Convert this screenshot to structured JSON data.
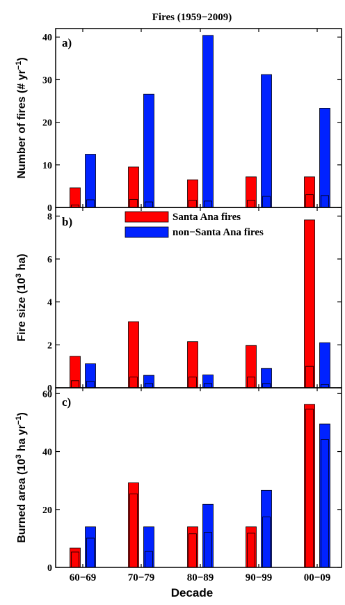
{
  "title": "Fires (1959−2009)",
  "xlabel": "Decade",
  "categories": [
    "60−69",
    "70−79",
    "80−89",
    "90−99",
    "00−09"
  ],
  "legend": {
    "placement": "top-center of panel b",
    "items": [
      "Santa Ana fires",
      "non−Santa Ana fires"
    ]
  },
  "colors": {
    "santa_ana": "#ff0000",
    "non_santa_ana": "#0022ff"
  },
  "chart_data": [
    {
      "type": "bar",
      "panel_label": "a)",
      "ylabel_main": "Number of fires (# yr",
      "ylabel_sup": "−1",
      "ylabel_end": ")",
      "ylim": [
        0,
        42
      ],
      "yticks": [
        0,
        10,
        20,
        30,
        40
      ],
      "categories": [
        "60−69",
        "70−79",
        "80−89",
        "90−99",
        "00−09"
      ],
      "series": [
        {
          "name": "Santa Ana fires",
          "values": [
            4.6,
            9.5,
            6.5,
            7.2,
            7.2
          ],
          "inner_values": [
            0.6,
            1.9,
            1.7,
            1.7,
            3.0
          ]
        },
        {
          "name": "non−Santa Ana fires",
          "values": [
            12.5,
            26.6,
            40.4,
            31.2,
            23.3
          ],
          "inner_values": [
            1.8,
            1.3,
            1.5,
            2.6,
            2.8
          ]
        }
      ]
    },
    {
      "type": "bar",
      "panel_label": "b)",
      "ylabel_main": "Fire size (10",
      "ylabel_sup": "3",
      "ylabel_end": " ha)",
      "ylim": [
        0,
        8.4
      ],
      "yticks": [
        0,
        2,
        4,
        6,
        8
      ],
      "categories": [
        "60−69",
        "70−79",
        "80−89",
        "90−99",
        "00−09"
      ],
      "series": [
        {
          "name": "Santa Ana fires",
          "values": [
            1.47,
            3.08,
            2.15,
            1.97,
            7.82
          ],
          "inner_values": [
            0.33,
            0.5,
            0.5,
            0.5,
            1.0
          ]
        },
        {
          "name": "non−Santa Ana fires",
          "values": [
            1.12,
            0.58,
            0.6,
            0.9,
            2.1
          ],
          "inner_values": [
            0.3,
            0.2,
            0.2,
            0.2,
            0.15
          ]
        }
      ]
    },
    {
      "type": "bar",
      "panel_label": "c)",
      "ylabel_main": "Burned area (10",
      "ylabel_sup": "3",
      "ylabel_end": " ha yr",
      "ylabel_sup2": "−1",
      "ylabel_end2": ")",
      "ylim": [
        0,
        62
      ],
      "yticks": [
        0,
        20,
        40,
        60
      ],
      "categories": [
        "60−69",
        "70−79",
        "80−89",
        "90−99",
        "00−09"
      ],
      "series": [
        {
          "name": "Santa Ana fires",
          "values": [
            6.7,
            29.2,
            14.0,
            14.0,
            56.3
          ],
          "inner_values": [
            5.3,
            25.4,
            11.6,
            11.8,
            54.6
          ]
        },
        {
          "name": "non−Santa Ana fires",
          "values": [
            14.0,
            14.0,
            21.8,
            26.6,
            49.5
          ],
          "inner_values": [
            10.1,
            5.5,
            12.1,
            17.4,
            44.1
          ]
        }
      ]
    }
  ]
}
